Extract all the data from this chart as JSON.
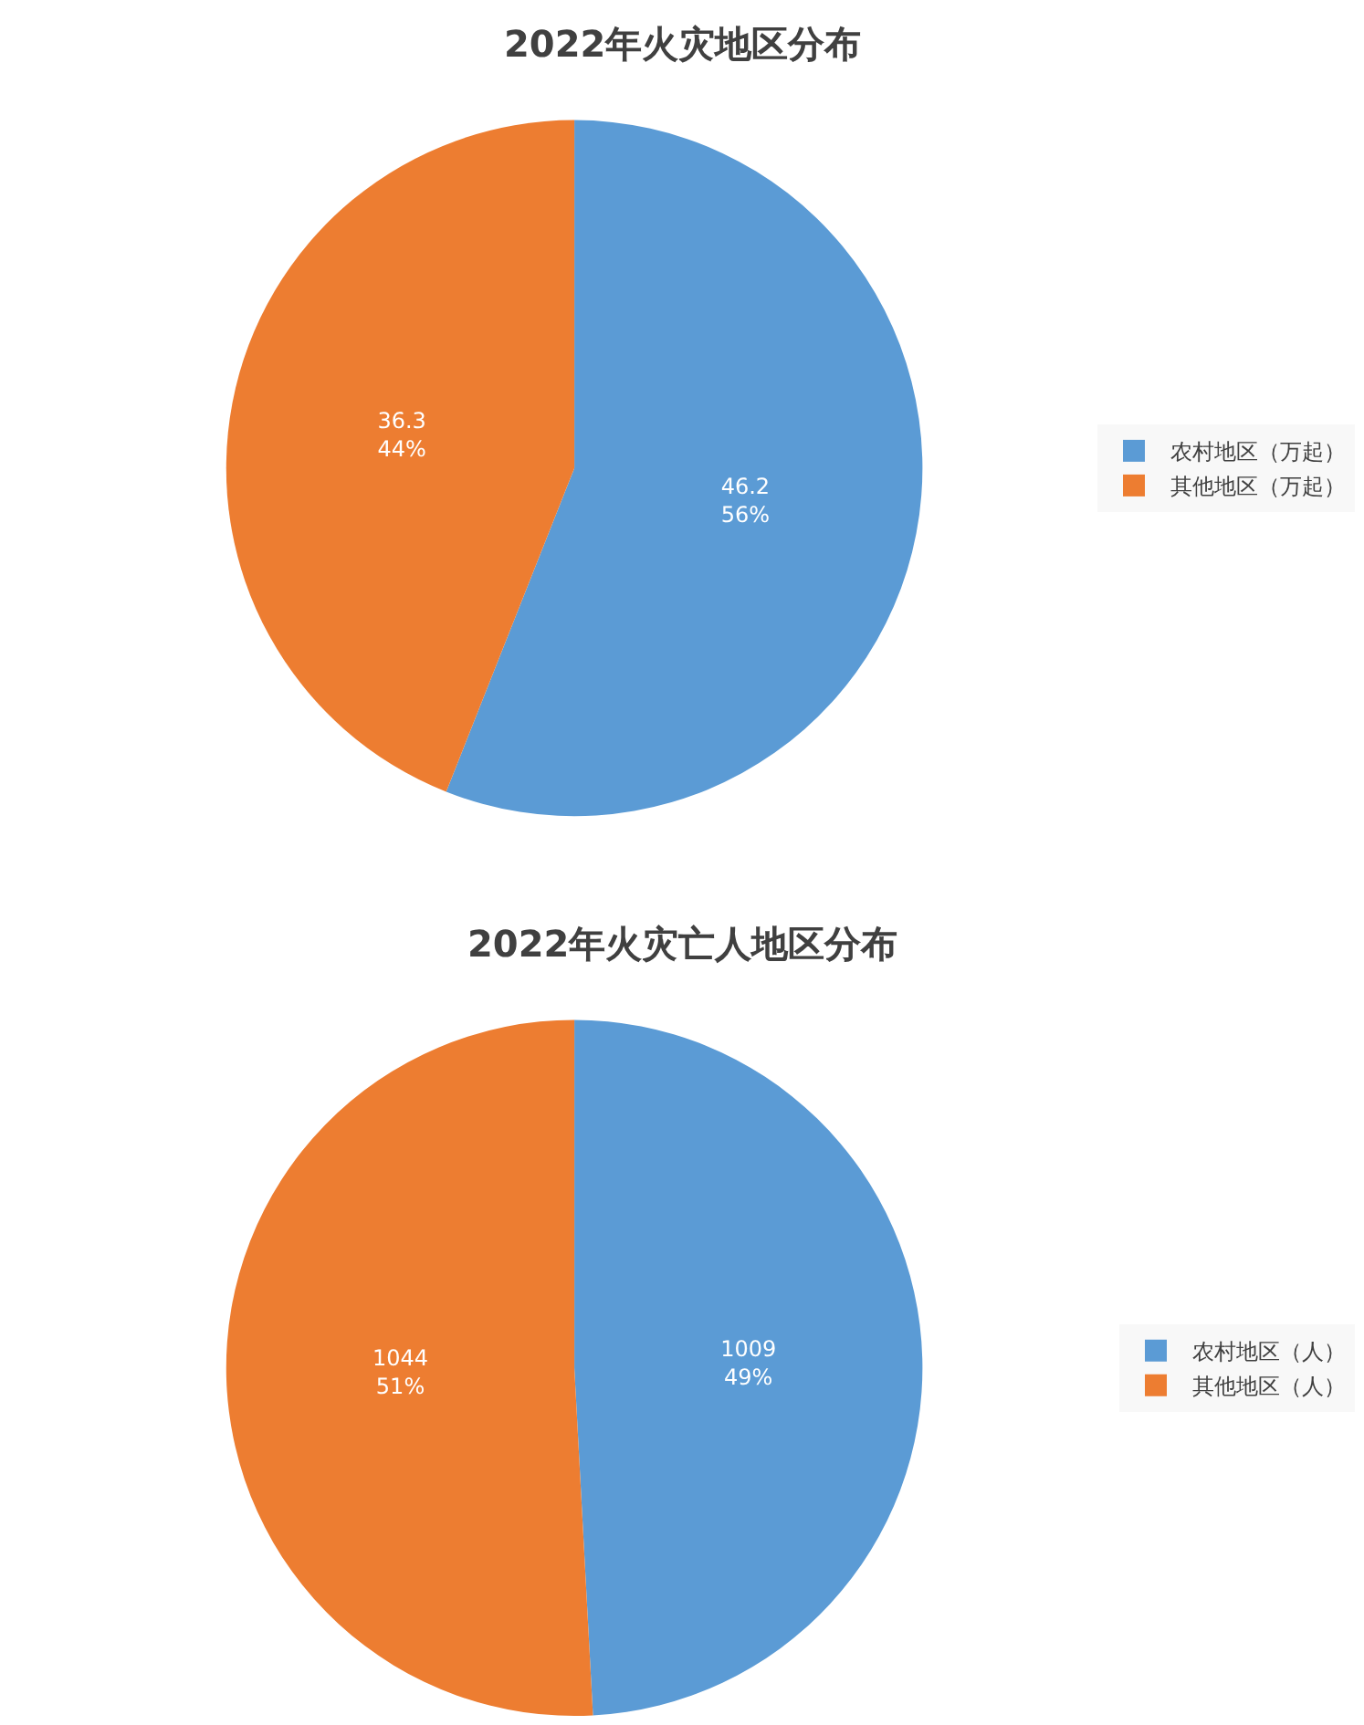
{
  "chart_data": [
    {
      "type": "pie",
      "title": "2022年火灾地区分布",
      "categories": [
        "农村地区（万起）",
        "其他地区（万起）"
      ],
      "values": [
        46.2,
        36.3
      ],
      "colors": [
        "#5b9bd5",
        "#ed7d31"
      ],
      "value_labels": [
        "46.2\n56%",
        "36.3\n44%"
      ],
      "legend": "right"
    },
    {
      "type": "pie",
      "title": "2022年火灾亡人地区分布",
      "categories": [
        "农村地区（人）",
        "其他地区（人）"
      ],
      "values": [
        1009,
        1044
      ],
      "colors": [
        "#5b9bd5",
        "#ed7d31"
      ],
      "value_labels": [
        "1009\n49%",
        "1044\n51%"
      ],
      "legend": "right"
    }
  ]
}
